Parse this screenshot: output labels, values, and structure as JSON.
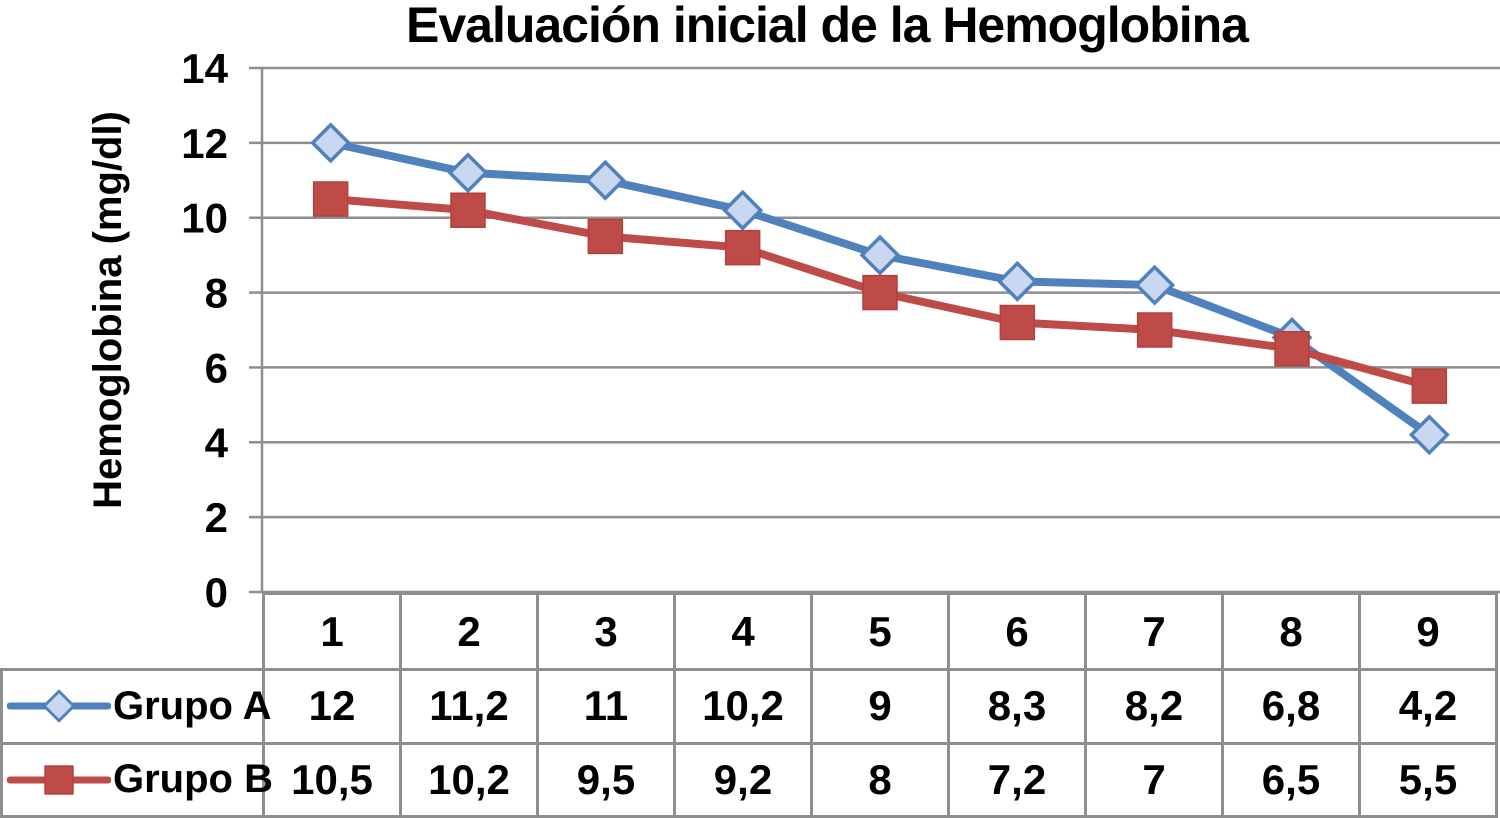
{
  "page": {
    "background": "#FFFFFF"
  },
  "chart_data": {
    "type": "line",
    "title": "Evaluación inicial de la Hemoglobina",
    "ylabel": "Hemoglobina (mg/dl)",
    "xlabel": "",
    "categories": [
      "1",
      "2",
      "3",
      "4",
      "5",
      "6",
      "7",
      "8",
      "9"
    ],
    "series": [
      {
        "name": "Grupo A",
        "values": [
          12,
          11.2,
          11,
          10.2,
          9,
          8.3,
          8.2,
          6.8,
          4.2
        ],
        "display_values": [
          "12",
          "11,2",
          "11",
          "10,2",
          "9",
          "8,3",
          "8,2",
          "6,8",
          "4,2"
        ],
        "color": "#4F81BD",
        "marker": "diamond",
        "marker_fill": "#C9D8F0",
        "marker_stroke": "#4F81BD"
      },
      {
        "name": "Grupo B",
        "values": [
          10.5,
          10.2,
          9.5,
          9.2,
          8,
          7.2,
          7,
          6.5,
          5.5
        ],
        "display_values": [
          "10,5",
          "10,2",
          "9,5",
          "9,2",
          "8",
          "7,2",
          "7",
          "6,5",
          "5,5"
        ],
        "color": "#BE4B48",
        "marker": "square",
        "marker_fill": "#BE4B48",
        "marker_stroke": "#B0413E"
      }
    ],
    "ylim": [
      0,
      14
    ],
    "ytick_step": 2,
    "ytick_labels": [
      "0",
      "2",
      "4",
      "6",
      "8",
      "10",
      "12",
      "14"
    ],
    "grid": "horizontal",
    "gridline_color": "#8E8E8E",
    "axis_color": "#8E8E8E",
    "text_color": "#000000",
    "legend_position": "table-left",
    "decimal_separator": ","
  }
}
